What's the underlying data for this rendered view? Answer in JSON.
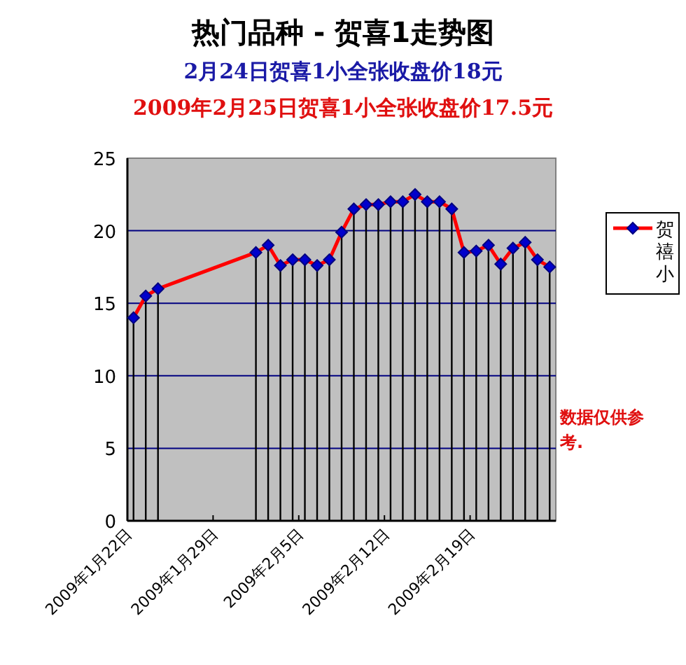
{
  "chart_data": {
    "type": "line",
    "title": "热门品种 - 贺喜1走势图",
    "subtitle": "2月24日贺喜1小全张收盘价18元",
    "annotations": [
      "2009年2月25日贺喜1小全张收盘价17.5元",
      "数据仅供参考."
    ],
    "x": [
      "2009-01-22T12:00",
      "2009-01-23T12:00",
      "2009-01-24T12:00",
      "2009-02-01T12:00",
      "2009-02-02T12:00",
      "2009-02-03T12:00",
      "2009-02-04T12:00",
      "2009-02-05T12:00",
      "2009-02-06T12:00",
      "2009-02-07T12:00",
      "2009-02-08T12:00",
      "2009-02-09T12:00",
      "2009-02-10T12:00",
      "2009-02-11T12:00",
      "2009-02-12T12:00",
      "2009-02-13T12:00",
      "2009-02-14T12:00",
      "2009-02-15T12:00",
      "2009-02-16T12:00",
      "2009-02-17T12:00",
      "2009-02-18T12:00",
      "2009-02-19T12:00",
      "2009-02-20T12:00",
      "2009-02-21T12:00",
      "2009-02-22T12:00",
      "2009-02-23T12:00",
      "2009-02-24T12:00",
      "2009-02-25T12:00"
    ],
    "series": [
      {
        "name": "贺禧小",
        "color": "#ff0000",
        "values": [
          14.0,
          15.5,
          16.0,
          18.5,
          19.0,
          17.6,
          18.0,
          18.0,
          17.6,
          18.0,
          19.9,
          21.5,
          21.8,
          21.8,
          22.0,
          22.0,
          22.5,
          22.0,
          22.0,
          21.5,
          18.5,
          18.6,
          19.0,
          17.7,
          18.8,
          19.2,
          18.0,
          17.5
        ],
        "errors": [
          [
            0,
            14.0
          ],
          [
            0,
            15.5
          ],
          [
            0,
            16.0
          ],
          [
            0,
            18.5
          ],
          [
            0,
            19.0
          ],
          [
            0,
            17.6
          ],
          [
            0,
            18.0
          ],
          [
            0,
            18.0
          ],
          [
            0,
            17.6
          ],
          [
            0,
            18.0
          ],
          [
            0,
            19.9
          ],
          [
            0,
            21.5
          ],
          [
            0,
            21.8
          ],
          [
            0,
            21.8
          ],
          [
            0,
            22.0
          ],
          [
            0,
            22.0
          ],
          [
            0,
            22.5
          ],
          [
            0,
            22.0
          ],
          [
            0,
            22.0
          ],
          [
            0,
            21.5
          ],
          [
            0,
            18.5
          ],
          [
            0,
            18.6
          ],
          [
            0,
            19.0
          ],
          [
            0,
            17.7
          ],
          [
            0,
            18.8
          ],
          [
            0,
            19.2
          ],
          [
            0,
            18.0
          ],
          [
            0,
            17.5
          ]
        ]
      }
    ],
    "marker": "diamond",
    "xlim": [
      "2009-01-22",
      "2009-02-26"
    ],
    "xticks": [
      {
        "value": "2009-01-22",
        "label": "2009年1月22日"
      },
      {
        "value": "2009-01-29",
        "label": "2009年1月29日"
      },
      {
        "value": "2009-02-05",
        "label": "2009年2月5日"
      },
      {
        "value": "2009-02-12",
        "label": "2009年2月12日"
      },
      {
        "value": "2009-02-19",
        "label": "2009年2月19日"
      }
    ],
    "ylim": [
      0,
      25
    ],
    "yticks": [
      0,
      5,
      10,
      15,
      20,
      25
    ],
    "grid": "y",
    "legend": "right",
    "line_style": "solid"
  }
}
